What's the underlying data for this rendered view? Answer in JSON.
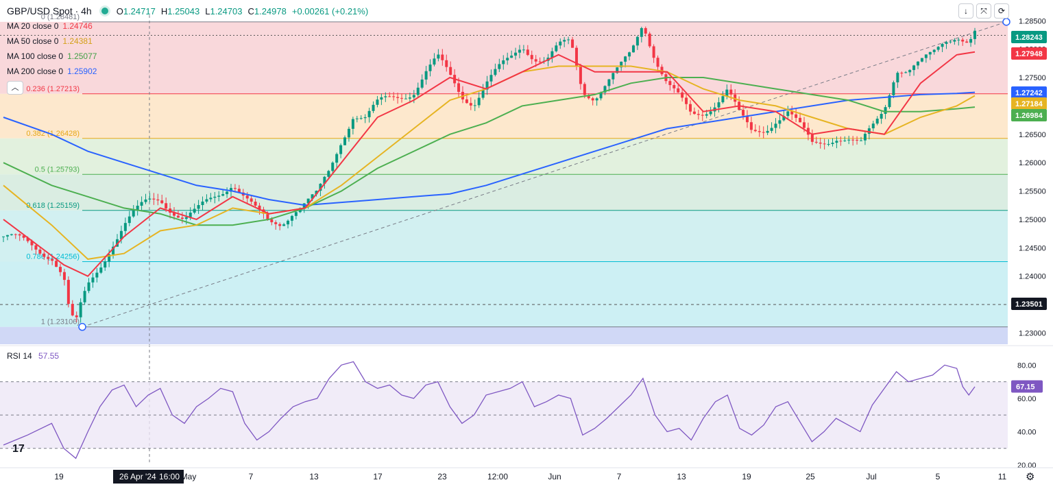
{
  "header": {
    "symbol": "GBP/USD Spot · 4h",
    "open_label": "O",
    "open": "1.24717",
    "high_label": "H",
    "high": "1.25043",
    "low_label": "L",
    "low": "1.24703",
    "close_label": "C",
    "close": "1.24978",
    "change": "+0.00261 (+0.21%)"
  },
  "indicators": [
    {
      "label": "MA 20 close 0",
      "value": "1.24746",
      "color": "#f23645"
    },
    {
      "label": "MA 50 close 0",
      "value": "1.24381",
      "color": "#e6b422"
    },
    {
      "label": "MA 100 close 0",
      "value": "1.25077",
      "color": "#4caf50"
    },
    {
      "label": "MA 200 close 0",
      "value": "1.25902",
      "color": "#2962ff"
    }
  ],
  "toolbar": {
    "collapse_icon": "chevron-up-icon",
    "down_icon": "arrow-down-icon",
    "fullscreen_icon": "expand-icon",
    "refresh_icon": "refresh-icon"
  },
  "rsi": {
    "label": "RSI 14",
    "value": "57.55",
    "color": "#7e57c2",
    "badge": "67.15",
    "ticks": [
      "80.00",
      "60.00",
      "40.00",
      "20.00"
    ]
  },
  "chart_data": {
    "type": "candlestick",
    "price_axis": {
      "ticks": [
        "1.28500",
        "1.28000",
        "1.27500",
        "1.27000",
        "1.26500",
        "1.26000",
        "1.25500",
        "1.25000",
        "1.24500",
        "1.24000",
        "1.23500",
        "1.23000"
      ],
      "range": [
        1.228,
        1.286
      ]
    },
    "time_axis": {
      "ticks": [
        "19",
        "26 Apr '24",
        "16:00",
        "May",
        "7",
        "13",
        "17",
        "23",
        "12:00",
        "Jun",
        "7",
        "13",
        "19",
        "25",
        "Jul",
        "5",
        "11"
      ]
    },
    "fibonacci": [
      {
        "label": "0 (1.28481)",
        "value": 1.28481
      },
      {
        "label": "0.236 (1.27213)",
        "value": 1.27213
      },
      {
        "label": "0.382 (1.26428)",
        "value": 1.26428
      },
      {
        "label": "0.5 (1.25793)",
        "value": 1.25793
      },
      {
        "label": "0.618 (1.25159)",
        "value": 1.25159
      },
      {
        "label": "0.786 (1.24256)",
        "value": 1.24256
      },
      {
        "label": "1 (1.23106)",
        "value": 1.23106
      }
    ],
    "price_badges": [
      {
        "value": "1.28243",
        "color": "#089981"
      },
      {
        "value": "1.27948",
        "color": "#f23645"
      },
      {
        "value": "1.27242",
        "color": "#2962ff"
      },
      {
        "value": "1.27184",
        "color": "#e6b422"
      },
      {
        "value": "1.26984",
        "color": "#4caf50"
      },
      {
        "value": "1.23501",
        "color": "#131722"
      }
    ],
    "close_path": [
      [
        0,
        1.247
      ],
      [
        4,
        1.2455
      ],
      [
        8,
        1.244
      ],
      [
        10,
        1.24
      ],
      [
        11,
        1.233
      ],
      [
        12,
        1.2311
      ],
      [
        13,
        1.235
      ],
      [
        14,
        1.238
      ],
      [
        16,
        1.242
      ],
      [
        18,
        1.246
      ],
      [
        20,
        1.249
      ],
      [
        22,
        1.251
      ],
      [
        24,
        1.253
      ],
      [
        26,
        1.254
      ],
      [
        28,
        1.252
      ],
      [
        30,
        1.25
      ],
      [
        32,
        1.251
      ],
      [
        34,
        1.253
      ],
      [
        36,
        1.255
      ],
      [
        38,
        1.257
      ],
      [
        40,
        1.254
      ],
      [
        42,
        1.251
      ],
      [
        44,
        1.249
      ],
      [
        46,
        1.2495
      ],
      [
        48,
        1.252
      ],
      [
        50,
        1.253
      ],
      [
        52,
        1.254
      ],
      [
        54,
        1.258
      ],
      [
        56,
        1.264
      ],
      [
        58,
        1.269
      ],
      [
        60,
        1.268
      ],
      [
        62,
        1.27
      ],
      [
        64,
        1.271
      ],
      [
        66,
        1.272
      ],
      [
        68,
        1.273
      ],
      [
        70,
        1.276
      ],
      [
        72,
        1.278
      ],
      [
        74,
        1.275
      ],
      [
        76,
        1.272
      ],
      [
        78,
        1.271
      ],
      [
        80,
        1.274
      ],
      [
        82,
        1.276
      ],
      [
        84,
        1.278
      ],
      [
        86,
        1.281
      ],
      [
        88,
        1.279
      ],
      [
        90,
        1.278
      ],
      [
        92,
        1.28
      ],
      [
        94,
        1.281
      ],
      [
        96,
        1.273
      ],
      [
        98,
        1.272
      ],
      [
        100,
        1.274
      ],
      [
        102,
        1.276
      ],
      [
        104,
        1.279
      ],
      [
        106,
        1.285
      ],
      [
        108,
        1.279
      ],
      [
        110,
        1.274
      ],
      [
        112,
        1.271
      ],
      [
        114,
        1.268
      ],
      [
        116,
        1.269
      ],
      [
        118,
        1.271
      ],
      [
        120,
        1.273
      ],
      [
        122,
        1.268
      ],
      [
        124,
        1.265
      ],
      [
        126,
        1.266
      ],
      [
        128,
        1.268
      ],
      [
        130,
        1.269
      ],
      [
        132,
        1.266
      ],
      [
        134,
        1.263
      ],
      [
        136,
        1.264
      ],
      [
        138,
        1.265
      ],
      [
        140,
        1.264
      ],
      [
        142,
        1.2625
      ],
      [
        144,
        1.266
      ],
      [
        146,
        1.27
      ],
      [
        148,
        1.277
      ],
      [
        150,
        1.276
      ],
      [
        152,
        1.277
      ],
      [
        154,
        1.279
      ],
      [
        156,
        1.282
      ],
      [
        158,
        1.283
      ],
      [
        160,
        1.281
      ],
      [
        161,
        1.2825
      ]
    ],
    "ma20": [
      [
        0,
        1.25
      ],
      [
        10,
        1.242
      ],
      [
        14,
        1.24
      ],
      [
        20,
        1.247
      ],
      [
        26,
        1.252
      ],
      [
        32,
        1.25
      ],
      [
        38,
        1.254
      ],
      [
        44,
        1.251
      ],
      [
        50,
        1.252
      ],
      [
        56,
        1.26
      ],
      [
        62,
        1.268
      ],
      [
        68,
        1.271
      ],
      [
        74,
        1.275
      ],
      [
        80,
        1.273
      ],
      [
        86,
        1.276
      ],
      [
        92,
        1.279
      ],
      [
        98,
        1.276
      ],
      [
        104,
        1.276
      ],
      [
        110,
        1.276
      ],
      [
        116,
        1.269
      ],
      [
        122,
        1.27
      ],
      [
        128,
        1.269
      ],
      [
        134,
        1.265
      ],
      [
        140,
        1.266
      ],
      [
        146,
        1.265
      ],
      [
        152,
        1.274
      ],
      [
        158,
        1.279
      ],
      [
        161,
        1.2795
      ]
    ],
    "ma50": [
      [
        0,
        1.256
      ],
      [
        8,
        1.249
      ],
      [
        14,
        1.243
      ],
      [
        20,
        1.244
      ],
      [
        26,
        1.248
      ],
      [
        32,
        1.249
      ],
      [
        38,
        1.252
      ],
      [
        44,
        1.251
      ],
      [
        50,
        1.252
      ],
      [
        56,
        1.256
      ],
      [
        62,
        1.261
      ],
      [
        68,
        1.266
      ],
      [
        74,
        1.271
      ],
      [
        80,
        1.273
      ],
      [
        86,
        1.276
      ],
      [
        92,
        1.277
      ],
      [
        98,
        1.277
      ],
      [
        104,
        1.277
      ],
      [
        110,
        1.276
      ],
      [
        116,
        1.273
      ],
      [
        122,
        1.271
      ],
      [
        128,
        1.27
      ],
      [
        134,
        1.268
      ],
      [
        140,
        1.266
      ],
      [
        146,
        1.265
      ],
      [
        152,
        1.268
      ],
      [
        158,
        1.27
      ],
      [
        161,
        1.2718
      ]
    ],
    "ma100": [
      [
        0,
        1.26
      ],
      [
        8,
        1.256
      ],
      [
        14,
        1.254
      ],
      [
        20,
        1.252
      ],
      [
        26,
        1.251
      ],
      [
        32,
        1.249
      ],
      [
        38,
        1.249
      ],
      [
        44,
        1.25
      ],
      [
        50,
        1.252
      ],
      [
        56,
        1.255
      ],
      [
        62,
        1.259
      ],
      [
        68,
        1.262
      ],
      [
        74,
        1.265
      ],
      [
        80,
        1.267
      ],
      [
        86,
        1.27
      ],
      [
        92,
        1.271
      ],
      [
        98,
        1.272
      ],
      [
        104,
        1.274
      ],
      [
        110,
        1.275
      ],
      [
        116,
        1.275
      ],
      [
        122,
        1.274
      ],
      [
        128,
        1.273
      ],
      [
        134,
        1.272
      ],
      [
        140,
        1.271
      ],
      [
        146,
        1.269
      ],
      [
        152,
        1.269
      ],
      [
        158,
        1.2695
      ],
      [
        161,
        1.2698
      ]
    ],
    "ma200": [
      [
        0,
        1.268
      ],
      [
        8,
        1.265
      ],
      [
        14,
        1.262
      ],
      [
        20,
        1.26
      ],
      [
        26,
        1.258
      ],
      [
        32,
        1.256
      ],
      [
        38,
        1.255
      ],
      [
        44,
        1.2535
      ],
      [
        50,
        1.2525
      ],
      [
        56,
        1.253
      ],
      [
        62,
        1.2535
      ],
      [
        68,
        1.254
      ],
      [
        74,
        1.2545
      ],
      [
        80,
        1.256
      ],
      [
        86,
        1.258
      ],
      [
        92,
        1.26
      ],
      [
        98,
        1.262
      ],
      [
        104,
        1.264
      ],
      [
        110,
        1.266
      ],
      [
        116,
        1.267
      ],
      [
        122,
        1.268
      ],
      [
        128,
        1.269
      ],
      [
        134,
        1.27
      ],
      [
        140,
        1.271
      ],
      [
        146,
        1.2715
      ],
      [
        152,
        1.272
      ],
      [
        158,
        1.2722
      ],
      [
        161,
        1.2724
      ]
    ],
    "rsi_path": [
      [
        0,
        32
      ],
      [
        4,
        38
      ],
      [
        8,
        45
      ],
      [
        10,
        30
      ],
      [
        12,
        24
      ],
      [
        14,
        40
      ],
      [
        16,
        55
      ],
      [
        18,
        65
      ],
      [
        20,
        68
      ],
      [
        22,
        55
      ],
      [
        24,
        62
      ],
      [
        26,
        66
      ],
      [
        28,
        50
      ],
      [
        30,
        45
      ],
      [
        32,
        55
      ],
      [
        34,
        60
      ],
      [
        36,
        66
      ],
      [
        38,
        64
      ],
      [
        40,
        45
      ],
      [
        42,
        35
      ],
      [
        44,
        40
      ],
      [
        46,
        48
      ],
      [
        48,
        55
      ],
      [
        50,
        58
      ],
      [
        52,
        60
      ],
      [
        54,
        72
      ],
      [
        56,
        80
      ],
      [
        58,
        82
      ],
      [
        60,
        70
      ],
      [
        62,
        66
      ],
      [
        64,
        68
      ],
      [
        66,
        62
      ],
      [
        68,
        60
      ],
      [
        70,
        68
      ],
      [
        72,
        70
      ],
      [
        74,
        55
      ],
      [
        76,
        45
      ],
      [
        78,
        50
      ],
      [
        80,
        62
      ],
      [
        82,
        64
      ],
      [
        84,
        66
      ],
      [
        86,
        70
      ],
      [
        88,
        55
      ],
      [
        90,
        58
      ],
      [
        92,
        62
      ],
      [
        94,
        60
      ],
      [
        96,
        38
      ],
      [
        98,
        42
      ],
      [
        100,
        48
      ],
      [
        102,
        55
      ],
      [
        104,
        62
      ],
      [
        106,
        72
      ],
      [
        108,
        50
      ],
      [
        110,
        40
      ],
      [
        112,
        42
      ],
      [
        114,
        35
      ],
      [
        116,
        48
      ],
      [
        118,
        58
      ],
      [
        120,
        62
      ],
      [
        122,
        42
      ],
      [
        124,
        38
      ],
      [
        126,
        44
      ],
      [
        128,
        55
      ],
      [
        130,
        58
      ],
      [
        132,
        46
      ],
      [
        134,
        34
      ],
      [
        136,
        40
      ],
      [
        138,
        48
      ],
      [
        140,
        44
      ],
      [
        142,
        40
      ],
      [
        144,
        56
      ],
      [
        146,
        66
      ],
      [
        148,
        76
      ],
      [
        150,
        70
      ],
      [
        152,
        72
      ],
      [
        154,
        74
      ],
      [
        156,
        80
      ],
      [
        158,
        78
      ],
      [
        159,
        67
      ],
      [
        160,
        62
      ],
      [
        161,
        67
      ]
    ],
    "rsi_range": [
      20,
      90
    ]
  }
}
